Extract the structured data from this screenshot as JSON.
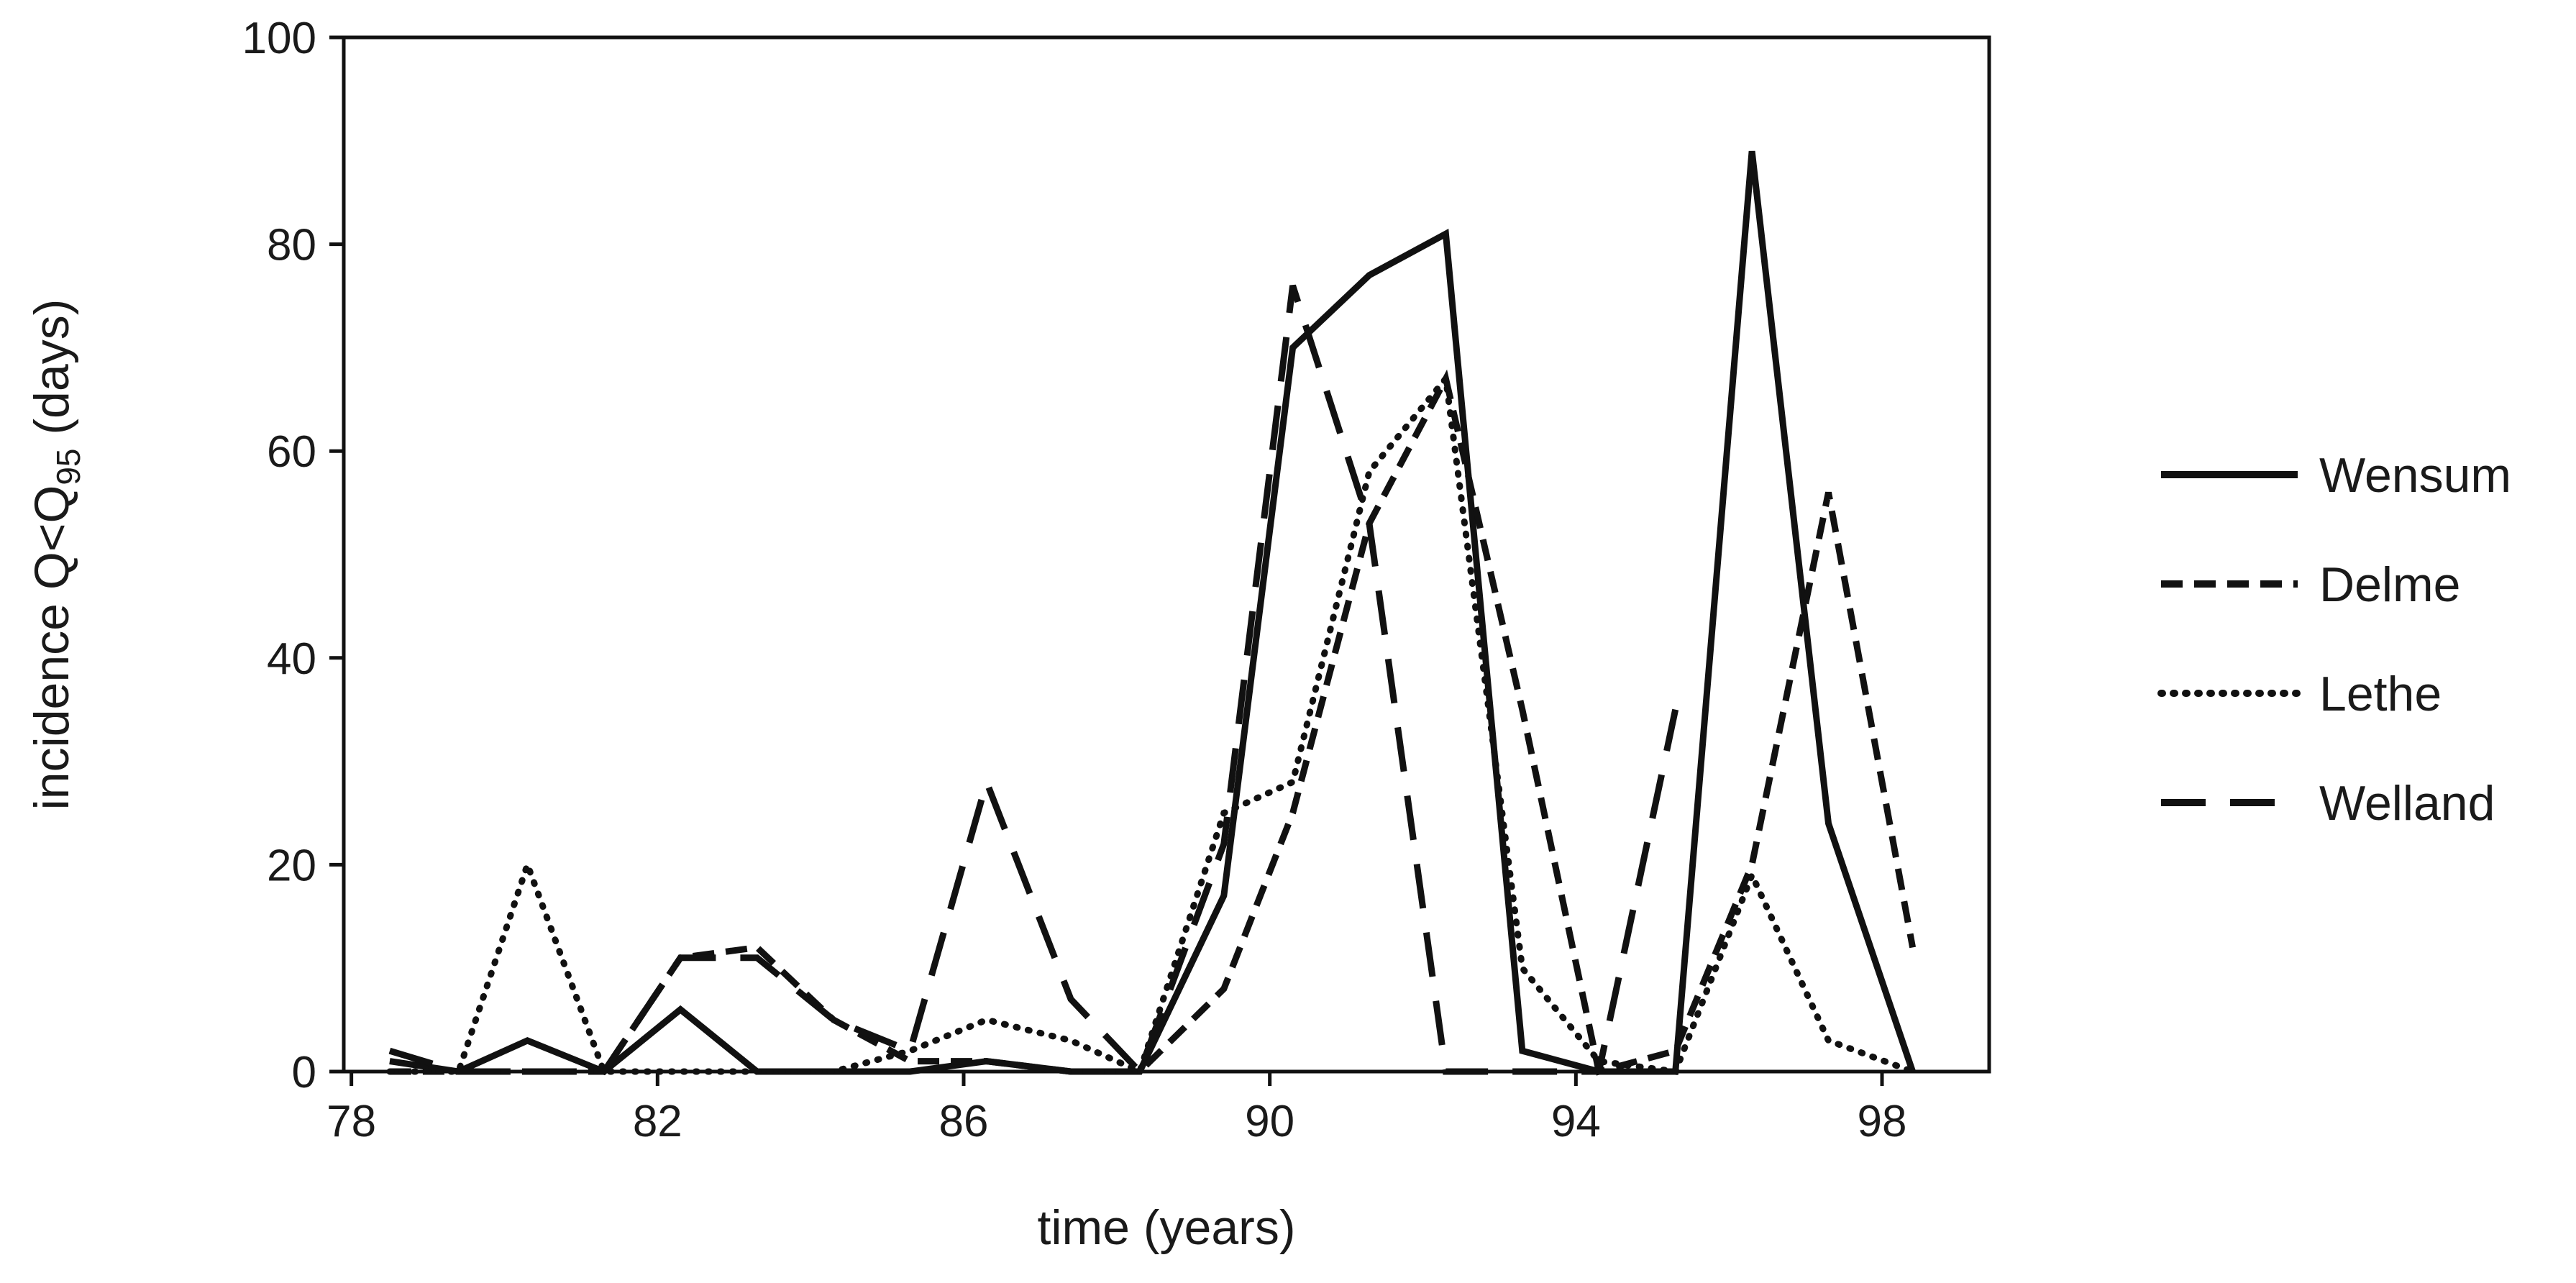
{
  "chart_data": {
    "type": "line",
    "title": "",
    "xlabel": "time (years)",
    "ylabel": {
      "main": "incidence Q<Q",
      "sub": "95",
      "suffix": " (days)"
    },
    "xlim": [
      77.9,
      99.4
    ],
    "ylim": [
      0,
      100
    ],
    "x_ticks": [
      {
        "value": 78,
        "label": "78"
      },
      {
        "value": 82,
        "label": "82"
      },
      {
        "value": 86,
        "label": "86"
      },
      {
        "value": 90,
        "label": "90"
      },
      {
        "value": 94,
        "label": "94"
      },
      {
        "value": 98,
        "label": "98"
      }
    ],
    "y_ticks": [
      {
        "value": 0,
        "label": "0"
      },
      {
        "value": 20,
        "label": "20"
      },
      {
        "value": 40,
        "label": "40"
      },
      {
        "value": 60,
        "label": "60"
      },
      {
        "value": 80,
        "label": "80"
      },
      {
        "value": 100,
        "label": "100"
      }
    ],
    "grid": false,
    "legend_position": "right",
    "series": [
      {
        "name": "Wensum",
        "style": "solid",
        "color": "#111111",
        "x": [
          78.5,
          79.4,
          80.3,
          81.3,
          82.3,
          83.3,
          84.3,
          85.3,
          86.3,
          87.4,
          88.3,
          89.4,
          90.3,
          91.3,
          92.3,
          93.3,
          94.3,
          95.3,
          96.3,
          97.3,
          98.4
        ],
        "y": [
          1,
          0,
          3,
          0,
          6,
          0,
          0,
          0,
          1,
          0,
          0,
          17,
          70,
          77,
          81,
          2,
          0,
          0,
          89,
          24,
          0
        ]
      },
      {
        "name": "Delme",
        "style": "dashed",
        "color": "#111111",
        "x": [
          78.5,
          79.4,
          80.3,
          81.3,
          82.3,
          83.3,
          84.3,
          85.3,
          86.3,
          87.4,
          88.3,
          89.4,
          90.3,
          91.3,
          92.3,
          93.3,
          94.3,
          95.3,
          96.3,
          97.3,
          98.4
        ],
        "y": [
          0,
          0,
          0,
          0,
          11,
          12,
          5,
          1,
          1,
          0,
          0,
          8,
          25,
          53,
          67,
          35,
          0,
          2,
          20,
          56,
          12
        ]
      },
      {
        "name": "Lethe",
        "style": "dotted",
        "color": "#111111",
        "x": [
          78.5,
          79.4,
          80.3,
          81.3,
          82.3,
          83.3,
          84.3,
          85.3,
          86.3,
          87.4,
          88.3,
          89.4,
          90.3,
          91.3,
          92.3,
          93.3,
          94.3,
          95.3,
          96.3,
          97.3,
          98.4
        ],
        "y": [
          0,
          0,
          20,
          0,
          0,
          0,
          0,
          2,
          5,
          3,
          0,
          25,
          28,
          58,
          67,
          10,
          1,
          0,
          19,
          3,
          0
        ]
      },
      {
        "name": "Welland",
        "style": "long-dashed",
        "color": "#111111",
        "x": [
          78.5,
          79.4,
          80.3,
          81.3,
          82.3,
          83.3,
          84.3,
          85.3,
          86.3,
          87.4,
          88.3,
          89.4,
          90.3,
          91.3,
          92.3,
          93.3,
          94.3,
          95.3
        ],
        "y": [
          2,
          0,
          0,
          0,
          11,
          11,
          5,
          2,
          28,
          7,
          0,
          22,
          76,
          53,
          0,
          0,
          0,
          35
        ]
      }
    ]
  }
}
